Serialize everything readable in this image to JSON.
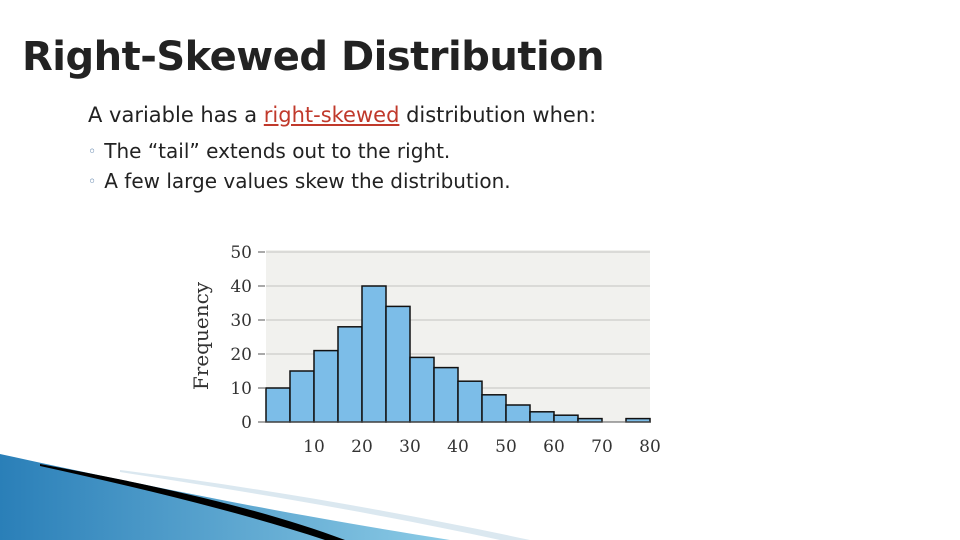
{
  "slide": {
    "title": "Right-Skewed Distribution",
    "intro_before": "A variable has a ",
    "intro_keyword": "right-skewed",
    "intro_after": " distribution when:",
    "bullets": [
      "The “tail” extends out to the right.",
      "A few large values skew the distribution."
    ],
    "keyword_color": "#c0392b"
  },
  "chart_data": {
    "type": "bar",
    "ylabel": "Frequency",
    "xlabel": "",
    "bin_width": 5,
    "bins_start": [
      0,
      5,
      10,
      15,
      20,
      25,
      30,
      35,
      40,
      45,
      50,
      55,
      60,
      65,
      70,
      75
    ],
    "values": [
      10,
      15,
      21,
      28,
      40,
      34,
      19,
      16,
      12,
      8,
      5,
      3,
      2,
      1,
      0,
      1
    ],
    "x_ticks": [
      10,
      20,
      30,
      40,
      50,
      60,
      70,
      80
    ],
    "y_ticks": [
      0,
      10,
      20,
      30,
      40,
      50
    ],
    "xlim": [
      0,
      80
    ],
    "ylim": [
      0,
      50
    ],
    "grid": true,
    "bar_color": "#7cbde8"
  }
}
